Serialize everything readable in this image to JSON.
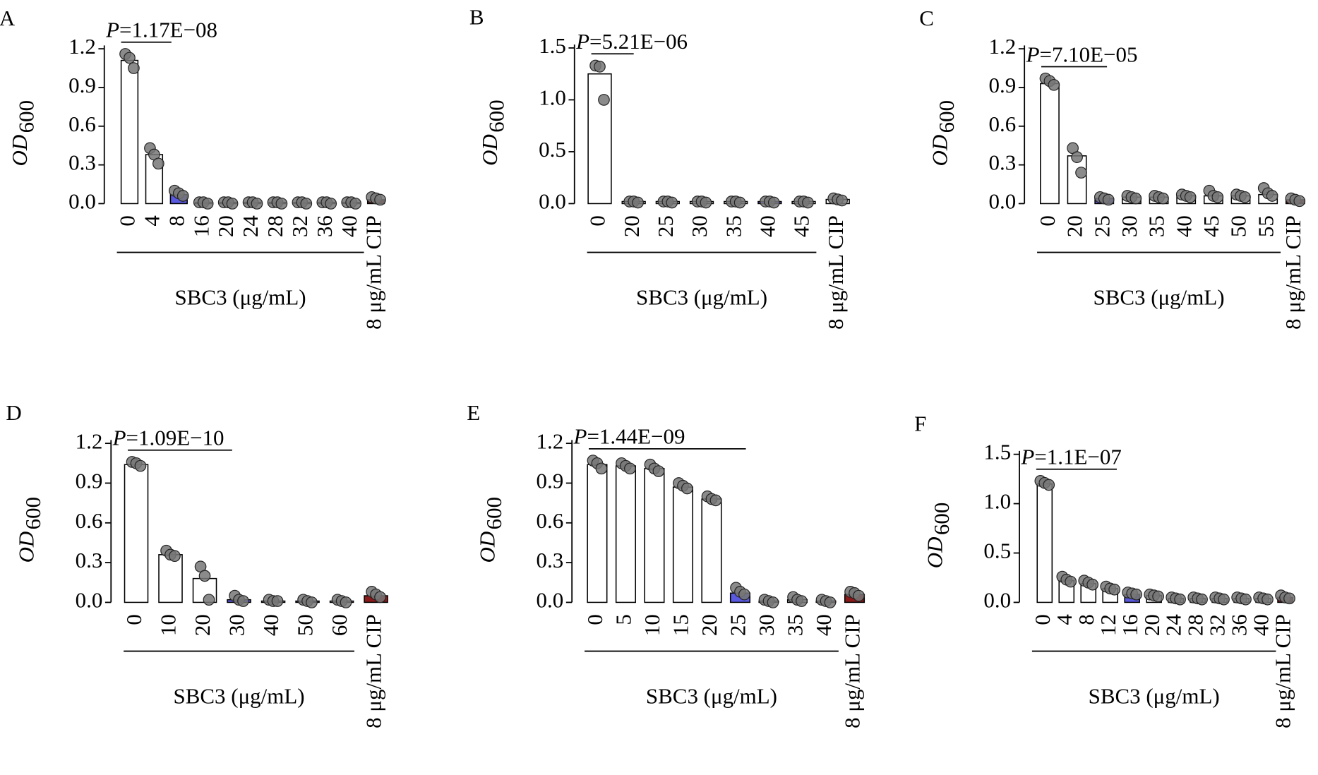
{
  "chart_data": [
    {
      "type": "bar",
      "panel": "A",
      "y_label": "OD",
      "y_label_sub": "600",
      "annotation_var": "P",
      "annotation": "=1.17E−08",
      "x_label": "SBC3 (μg/mL)",
      "categories": [
        "0",
        "4",
        "8",
        "16",
        "20",
        "24",
        "28",
        "32",
        "36",
        "40",
        "8 μg/mL CIP"
      ],
      "values": [
        1.11,
        0.38,
        0.07,
        0.01,
        0.01,
        0.01,
        0.01,
        0.01,
        0.01,
        0.01,
        0.03
      ],
      "points": [
        [
          1.16,
          1.13,
          1.05
        ],
        [
          0.43,
          0.38,
          0.31
        ],
        [
          0.1,
          0.08,
          0.06
        ],
        [
          0.01,
          0.01,
          0.0
        ],
        [
          0.01,
          0.01,
          0.0
        ],
        [
          0.01,
          0.01,
          0.0
        ],
        [
          0.01,
          0.01,
          0.0
        ],
        [
          0.01,
          0.01,
          0.0
        ],
        [
          0.01,
          0.01,
          0.0
        ],
        [
          0.01,
          0.01,
          0.0
        ],
        [
          0.05,
          0.04,
          0.03
        ]
      ],
      "colors": [
        "#ffffff",
        "#ffffff",
        "#5a5ae0",
        "#ffffff",
        "#ffffff",
        "#5a5ae0",
        "#ffffff",
        "#ffffff",
        "#ffffff",
        "#ffffff",
        "#8b1a1a"
      ],
      "ylim": [
        0,
        1.2
      ],
      "yticks": [
        {
          "value": 0,
          "label": "0.0"
        },
        0.3,
        0.6,
        0.9,
        1.2
      ]
    },
    {
      "type": "bar",
      "panel": "B",
      "y_label": "OD",
      "y_label_sub": "600",
      "annotation_var": "P",
      "annotation": "=5.21E−06",
      "x_label": "SBC3 (μg/mL)",
      "categories": [
        "0",
        "20",
        "25",
        "30",
        "35",
        "40",
        "45",
        "8 μg/mL CIP"
      ],
      "values": [
        1.25,
        0.02,
        0.02,
        0.02,
        0.02,
        0.02,
        0.02,
        0.04
      ],
      "points": [
        [
          1.33,
          1.32,
          1.0
        ],
        [
          0.02,
          0.02,
          0.01
        ],
        [
          0.02,
          0.02,
          0.01
        ],
        [
          0.02,
          0.02,
          0.01
        ],
        [
          0.02,
          0.02,
          0.01
        ],
        [
          0.02,
          0.02,
          0.01
        ],
        [
          0.02,
          0.02,
          0.01
        ],
        [
          0.05,
          0.04,
          0.03
        ]
      ],
      "colors": [
        "#ffffff",
        "#ffffff",
        "#ffffff",
        "#ffffff",
        "#ffffff",
        "#5a5ae0",
        "#ffffff",
        "#ffffff"
      ],
      "ylim": [
        0,
        1.5
      ],
      "yticks": [
        {
          "value": 0,
          "label": "0.0"
        },
        0.5,
        {
          "value": 1,
          "label": "1.0"
        },
        1.5
      ]
    },
    {
      "type": "bar",
      "panel": "C",
      "y_label": "OD",
      "y_label_sub": "600",
      "annotation_var": "P",
      "annotation": "=7.10E−05",
      "x_label": "SBC3 (μg/mL)",
      "categories": [
        "0",
        "20",
        "25",
        "30",
        "35",
        "40",
        "45",
        "50",
        "55",
        "8 μg/mL CIP"
      ],
      "values": [
        0.93,
        0.37,
        0.04,
        0.05,
        0.05,
        0.06,
        0.06,
        0.06,
        0.07,
        0.03
      ],
      "points": [
        [
          0.97,
          0.95,
          0.92
        ],
        [
          0.43,
          0.36,
          0.24
        ],
        [
          0.05,
          0.04,
          0.03
        ],
        [
          0.06,
          0.05,
          0.04
        ],
        [
          0.06,
          0.05,
          0.04
        ],
        [
          0.07,
          0.06,
          0.05
        ],
        [
          0.1,
          0.06,
          0.05
        ],
        [
          0.07,
          0.06,
          0.05
        ],
        [
          0.12,
          0.08,
          0.06
        ],
        [
          0.04,
          0.03,
          0.02
        ]
      ],
      "colors": [
        "#ffffff",
        "#ffffff",
        "#5a5ae0",
        "#ffffff",
        "#ffffff",
        "#ffffff",
        "#ffffff",
        "#ffffff",
        "#ffffff",
        "#8b1a1a"
      ],
      "ylim": [
        0,
        1.2
      ],
      "yticks": [
        {
          "value": 0,
          "label": "0.0"
        },
        0.3,
        0.6,
        0.9,
        1.2
      ]
    },
    {
      "type": "bar",
      "panel": "D",
      "y_label": "OD",
      "y_label_sub": "600",
      "annotation_var": "P",
      "annotation": "=1.09E−10",
      "x_label": "SBC3 (μg/mL)",
      "categories": [
        "0",
        "10",
        "20",
        "30",
        "40",
        "50",
        "60",
        "8 μg/mL CIP"
      ],
      "values": [
        1.04,
        0.36,
        0.18,
        0.02,
        0.01,
        0.01,
        0.01,
        0.05
      ],
      "points": [
        [
          1.06,
          1.05,
          1.03
        ],
        [
          0.39,
          0.36,
          0.35
        ],
        [
          0.27,
          0.2,
          0.02
        ],
        [
          0.05,
          0.02,
          0.01
        ],
        [
          0.02,
          0.01,
          0.01
        ],
        [
          0.02,
          0.01,
          0.0
        ],
        [
          0.02,
          0.01,
          0.0
        ],
        [
          0.08,
          0.06,
          0.04
        ]
      ],
      "colors": [
        "#ffffff",
        "#ffffff",
        "#ffffff",
        "#5a5ae0",
        "#ffffff",
        "#5a5ae0",
        "#ffffff",
        "#8b1a1a"
      ],
      "ylim": [
        0,
        1.2
      ],
      "yticks": [
        {
          "value": 0,
          "label": "0.0"
        },
        0.3,
        0.6,
        0.9,
        1.2
      ]
    },
    {
      "type": "bar",
      "panel": "E",
      "y_label": "OD",
      "y_label_sub": "600",
      "annotation_var": "P",
      "annotation": "=1.44E−09",
      "x_label": "SBC3 (μg/mL)",
      "categories": [
        "0",
        "5",
        "10",
        "15",
        "20",
        "25",
        "30",
        "35",
        "40",
        "8 μg/mL CIP"
      ],
      "values": [
        1.04,
        1.03,
        1.01,
        0.87,
        0.78,
        0.07,
        0.01,
        0.02,
        0.01,
        0.06
      ],
      "points": [
        [
          1.07,
          1.05,
          1.01
        ],
        [
          1.05,
          1.03,
          1.01
        ],
        [
          1.04,
          1.01,
          0.99
        ],
        [
          0.9,
          0.88,
          0.86
        ],
        [
          0.8,
          0.78,
          0.77
        ],
        [
          0.11,
          0.08,
          0.06
        ],
        [
          0.02,
          0.01,
          0.0
        ],
        [
          0.04,
          0.02,
          0.01
        ],
        [
          0.02,
          0.01,
          0.0
        ],
        [
          0.08,
          0.07,
          0.05
        ]
      ],
      "colors": [
        "#ffffff",
        "#ffffff",
        "#ffffff",
        "#ffffff",
        "#ffffff",
        "#5a5ae0",
        "#ffffff",
        "#ffffff",
        "#ffffff",
        "#8b1a1a"
      ],
      "ylim": [
        0,
        1.2
      ],
      "yticks": [
        {
          "value": 0,
          "label": "0.0"
        },
        0.3,
        0.6,
        0.9,
        1.2
      ]
    },
    {
      "type": "bar",
      "panel": "F",
      "y_label": "OD",
      "y_label_sub": "600",
      "annotation_var": "P",
      "annotation": "=1.1E−07",
      "x_label": "SBC3 (μg/mL)",
      "categories": [
        "0",
        "4",
        "8",
        "12",
        "16",
        "20",
        "24",
        "28",
        "32",
        "36",
        "40",
        "8 μg/mL CIP"
      ],
      "values": [
        1.2,
        0.22,
        0.19,
        0.14,
        0.08,
        0.07,
        0.04,
        0.04,
        0.04,
        0.04,
        0.04,
        0.05
      ],
      "points": [
        [
          1.23,
          1.21,
          1.19
        ],
        [
          0.26,
          0.23,
          0.21
        ],
        [
          0.22,
          0.2,
          0.18
        ],
        [
          0.16,
          0.14,
          0.13
        ],
        [
          0.1,
          0.09,
          0.08
        ],
        [
          0.08,
          0.07,
          0.06
        ],
        [
          0.05,
          0.04,
          0.03
        ],
        [
          0.05,
          0.04,
          0.03
        ],
        [
          0.05,
          0.04,
          0.03
        ],
        [
          0.05,
          0.04,
          0.03
        ],
        [
          0.05,
          0.04,
          0.03
        ],
        [
          0.07,
          0.05,
          0.04
        ]
      ],
      "colors": [
        "#ffffff",
        "#ffffff",
        "#ffffff",
        "#ffffff",
        "#5a5ae0",
        "#ffffff",
        "#ffffff",
        "#ffffff",
        "#ffffff",
        "#ffffff",
        "#ffffff",
        "#8b1a1a"
      ],
      "ylim": [
        0,
        1.5
      ],
      "yticks": [
        {
          "value": 0,
          "label": "0.0"
        },
        0.5,
        {
          "value": 1,
          "label": "1.0"
        },
        1.5
      ]
    }
  ]
}
